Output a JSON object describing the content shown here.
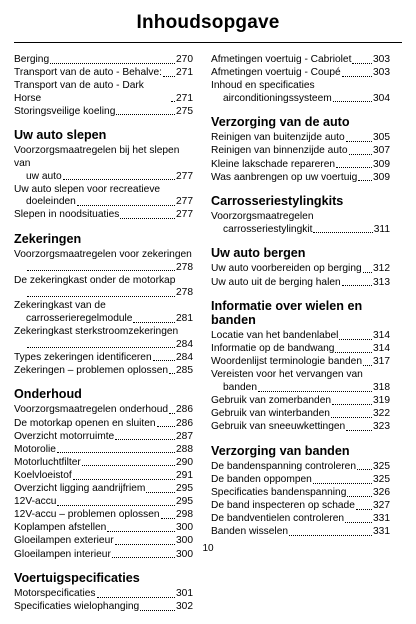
{
  "page_title": "Inhoudsopgave",
  "page_number": "10",
  "left_column": [
    {
      "heading": "",
      "entries": [
        {
          "lines": [
            "Berging"
          ],
          "page": "270"
        },
        {
          "lines": [
            "Transport van de auto - Behalve:"
          ],
          "page": "271"
        },
        {
          "lines": [
            "Transport van de auto - Dark Horse"
          ],
          "page": "271"
        },
        {
          "lines": [
            "Storingsveilige koeling"
          ],
          "page": "275"
        }
      ]
    },
    {
      "heading": "Uw auto slepen",
      "entries": [
        {
          "lines": [
            "Voorzorgsmaatregelen bij het slepen van",
            "uw auto"
          ],
          "page": "277"
        },
        {
          "lines": [
            "Uw auto slepen voor recreatieve",
            "doeleinden"
          ],
          "page": "277"
        },
        {
          "lines": [
            "Slepen in noodsituaties"
          ],
          "page": "277"
        }
      ]
    },
    {
      "heading": "Zekeringen",
      "entries": [
        {
          "lines": [
            "Voorzorgsmaatregelen voor zekeringen",
            ""
          ],
          "page": "278"
        },
        {
          "lines": [
            "De zekeringkast onder de motorkap",
            ""
          ],
          "page": "278"
        },
        {
          "lines": [
            "Zekeringkast van de",
            "carrosserieregelmodule"
          ],
          "page": "281"
        },
        {
          "lines": [
            "Zekeringkast sterkstroomzekeringen",
            ""
          ],
          "page": "284"
        },
        {
          "lines": [
            "Types zekeringen identificeren"
          ],
          "page": "284"
        },
        {
          "lines": [
            "Zekeringen – problemen oplossen"
          ],
          "page": "285"
        }
      ]
    },
    {
      "heading": "Onderhoud",
      "entries": [
        {
          "lines": [
            "Voorzorgsmaatregelen onderhoud"
          ],
          "page": "286"
        },
        {
          "lines": [
            "De motorkap openen en sluiten"
          ],
          "page": "286"
        },
        {
          "lines": [
            "Overzicht motorruimte"
          ],
          "page": "287"
        },
        {
          "lines": [
            "Motorolie"
          ],
          "page": "288"
        },
        {
          "lines": [
            "Motorluchtfilter"
          ],
          "page": "290"
        },
        {
          "lines": [
            "Koelvloeistof"
          ],
          "page": "291"
        },
        {
          "lines": [
            "Overzicht ligging aandrijfriem"
          ],
          "page": "295"
        },
        {
          "lines": [
            "12V-accu"
          ],
          "page": "295"
        },
        {
          "lines": [
            "12V-accu – problemen oplossen"
          ],
          "page": "298"
        },
        {
          "lines": [
            "Koplampen afstellen"
          ],
          "page": "300"
        },
        {
          "lines": [
            "Gloeilampen exterieur"
          ],
          "page": "300"
        },
        {
          "lines": [
            "Gloeilampen interieur"
          ],
          "page": "300"
        }
      ]
    },
    {
      "heading": "Voertuigspecificaties",
      "entries": [
        {
          "lines": [
            "Motorspecificaties"
          ],
          "page": "301"
        },
        {
          "lines": [
            "Specificaties wielophanging"
          ],
          "page": "302"
        }
      ]
    }
  ],
  "right_column": [
    {
      "heading": "",
      "entries": [
        {
          "lines": [
            "Afmetingen voertuig - Cabriolet"
          ],
          "page": "303"
        },
        {
          "lines": [
            "Afmetingen voertuig - Coupé"
          ],
          "page": "303"
        },
        {
          "lines": [
            "Inhoud en specificaties",
            "airconditioningssysteem"
          ],
          "page": "304"
        }
      ]
    },
    {
      "heading": "Verzorging van de auto",
      "entries": [
        {
          "lines": [
            "Reinigen van buitenzijde auto"
          ],
          "page": "305"
        },
        {
          "lines": [
            "Reinigen van binnenzijde auto"
          ],
          "page": "307"
        },
        {
          "lines": [
            "Kleine lakschade repareren"
          ],
          "page": "309"
        },
        {
          "lines": [
            "Was aanbrengen op uw voertuig"
          ],
          "page": "309"
        }
      ]
    },
    {
      "heading": "Carrosseriestylingkits",
      "entries": [
        {
          "lines": [
            "Voorzorgsmaatregelen",
            "carrosseriestylingkit"
          ],
          "page": "311"
        }
      ]
    },
    {
      "heading": "Uw auto bergen",
      "entries": [
        {
          "lines": [
            "Uw auto voorbereiden op berging"
          ],
          "page": "312"
        },
        {
          "lines": [
            "Uw auto uit de berging halen"
          ],
          "page": "313"
        }
      ]
    },
    {
      "heading": "Informatie over wielen en banden",
      "entries": [
        {
          "lines": [
            "Locatie van het bandenlabel"
          ],
          "page": "314"
        },
        {
          "lines": [
            "Informatie op de bandwang"
          ],
          "page": "314"
        },
        {
          "lines": [
            "Woordenlijst terminologie banden"
          ],
          "page": "317"
        },
        {
          "lines": [
            "Vereisten voor het vervangen van",
            "banden"
          ],
          "page": "318"
        },
        {
          "lines": [
            "Gebruik van zomerbanden"
          ],
          "page": "319"
        },
        {
          "lines": [
            "Gebruik van winterbanden"
          ],
          "page": "322"
        },
        {
          "lines": [
            "Gebruik van sneeuwkettingen"
          ],
          "page": "323"
        }
      ]
    },
    {
      "heading": "Verzorging van banden",
      "entries": [
        {
          "lines": [
            "De bandenspanning controleren"
          ],
          "page": "325"
        },
        {
          "lines": [
            "De banden oppompen"
          ],
          "page": "325"
        },
        {
          "lines": [
            "Specificaties bandenspanning"
          ],
          "page": "326"
        },
        {
          "lines": [
            "De band inspecteren op schade"
          ],
          "page": "327"
        },
        {
          "lines": [
            "De bandventielen controleren"
          ],
          "page": "331"
        },
        {
          "lines": [
            "Banden wisselen"
          ],
          "page": "331"
        }
      ]
    }
  ]
}
